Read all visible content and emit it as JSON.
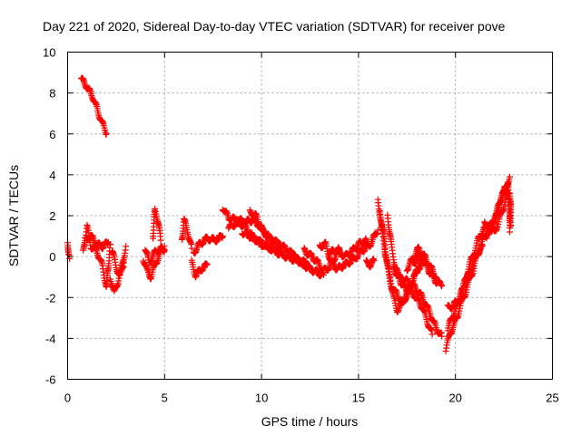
{
  "chart_data": {
    "type": "scatter",
    "title": "Day 221 of 2020, Sidereal Day-to-day VTEC variation (SDTVAR) for receiver pove",
    "xlabel": "GPS time / hours",
    "ylabel": "SDTVAR / TECUs",
    "xlim": [
      0,
      25
    ],
    "ylim": [
      -6,
      10
    ],
    "xticks": [
      "0",
      "5",
      "10",
      "15",
      "20",
      "25"
    ],
    "yticks": [
      "-6",
      "-4",
      "-2",
      "0",
      "2",
      "4",
      "6",
      "8",
      "10"
    ],
    "grid": true,
    "marker": "+",
    "series_color": "#ff0000",
    "segments": [
      {
        "name": "early-high",
        "points": [
          [
            0.7,
            8.7
          ],
          [
            1.0,
            8.3
          ],
          [
            1.3,
            7.8
          ],
          [
            1.6,
            7.0
          ],
          [
            2.0,
            6.0
          ]
        ]
      },
      {
        "name": "start",
        "points": [
          [
            0.0,
            0.8
          ],
          [
            0.05,
            0.0
          ],
          [
            0.1,
            -0.1
          ]
        ]
      },
      {
        "name": "hour1-2a",
        "points": [
          [
            0.8,
            0.2
          ],
          [
            1.0,
            1.5
          ],
          [
            1.2,
            0.5
          ],
          [
            1.5,
            0.3
          ],
          [
            1.8,
            -0.5
          ],
          [
            2.0,
            -1.5
          ],
          [
            2.2,
            0.6
          ]
        ]
      },
      {
        "name": "hour1-2b",
        "points": [
          [
            0.9,
            0.8
          ],
          [
            1.2,
            1.0
          ],
          [
            1.5,
            0.6
          ],
          [
            1.8,
            0.5
          ],
          [
            2.1,
            0.7
          ]
        ]
      },
      {
        "name": "hour2-3",
        "points": [
          [
            2.2,
            -1.0
          ],
          [
            2.4,
            -1.8
          ],
          [
            2.6,
            -1.2
          ],
          [
            2.8,
            -0.5
          ],
          [
            3.0,
            0.5
          ]
        ]
      },
      {
        "name": "hour2-3b",
        "points": [
          [
            2.3,
            0.3
          ],
          [
            2.5,
            -0.5
          ],
          [
            2.7,
            -1.0
          ],
          [
            2.9,
            -0.3
          ]
        ]
      },
      {
        "name": "hour4-5",
        "points": [
          [
            3.9,
            -0.1
          ],
          [
            4.1,
            -0.7
          ],
          [
            4.3,
            -1.0
          ],
          [
            4.5,
            -0.4
          ],
          [
            4.8,
            0.2
          ],
          [
            5.0,
            0.5
          ]
        ]
      },
      {
        "name": "hour4-5b",
        "points": [
          [
            4.0,
            0.4
          ],
          [
            4.2,
            -0.3
          ],
          [
            4.5,
            0.2
          ],
          [
            4.8,
            0.4
          ],
          [
            5.0,
            0.3
          ]
        ]
      },
      {
        "name": "hour4-spike",
        "points": [
          [
            4.4,
            1.0
          ],
          [
            4.5,
            2.3
          ],
          [
            4.6,
            2.0
          ],
          [
            4.7,
            1.5
          ],
          [
            4.8,
            0.8
          ]
        ]
      },
      {
        "name": "hour6",
        "points": [
          [
            5.9,
            0.8
          ],
          [
            6.0,
            1.8
          ],
          [
            6.2,
            1.2
          ],
          [
            6.4,
            0.4
          ]
        ]
      },
      {
        "name": "hour6-7",
        "points": [
          [
            6.4,
            -0.3
          ],
          [
            6.6,
            -0.9
          ],
          [
            6.9,
            -0.6
          ],
          [
            7.2,
            -0.4
          ]
        ]
      },
      {
        "name": "hour6-7b",
        "points": [
          [
            6.5,
            0.2
          ],
          [
            6.8,
            0.6
          ],
          [
            7.2,
            0.9
          ],
          [
            7.6,
            0.8
          ],
          [
            8.0,
            1.0
          ]
        ]
      },
      {
        "name": "hour8-10a",
        "points": [
          [
            8.0,
            2.4
          ],
          [
            8.3,
            1.9
          ],
          [
            8.7,
            1.8
          ],
          [
            9.2,
            1.7
          ],
          [
            9.6,
            1.8
          ],
          [
            10.0,
            1.4
          ],
          [
            10.5,
            0.8
          ],
          [
            11.0,
            0.6
          ]
        ]
      },
      {
        "name": "hour8-10b",
        "points": [
          [
            8.3,
            1.4
          ],
          [
            8.8,
            1.7
          ],
          [
            9.2,
            1.4
          ],
          [
            9.6,
            0.9
          ],
          [
            10.0,
            0.6
          ],
          [
            10.5,
            0.4
          ],
          [
            11.0,
            0.3
          ]
        ]
      },
      {
        "name": "hour9-11",
        "points": [
          [
            9.4,
            2.2
          ],
          [
            9.7,
            2.0
          ],
          [
            10.0,
            1.3
          ],
          [
            10.4,
            0.9
          ],
          [
            10.9,
            0.6
          ],
          [
            11.4,
            0.3
          ],
          [
            11.9,
            -0.2
          ],
          [
            12.4,
            -0.4
          ]
        ]
      },
      {
        "name": "hour9-11b",
        "points": [
          [
            9.0,
            1.2
          ],
          [
            9.4,
            1.0
          ],
          [
            9.8,
            0.8
          ],
          [
            10.3,
            0.5
          ],
          [
            10.8,
            0.2
          ],
          [
            11.3,
            0.0
          ],
          [
            11.8,
            -0.2
          ],
          [
            12.3,
            -0.3
          ]
        ]
      },
      {
        "name": "hour11-13",
        "points": [
          [
            11.5,
            0.2
          ],
          [
            12.0,
            -0.3
          ],
          [
            12.5,
            -0.6
          ],
          [
            12.9,
            -0.8
          ],
          [
            13.2,
            -0.9
          ]
        ]
      },
      {
        "name": "hour12-14",
        "points": [
          [
            12.2,
            0.3
          ],
          [
            12.6,
            0.0
          ],
          [
            12.9,
            -0.3
          ],
          [
            13.2,
            -0.7
          ],
          [
            13.5,
            -0.5
          ],
          [
            13.8,
            0.0
          ],
          [
            14.0,
            0.4
          ]
        ]
      },
      {
        "name": "hour13-15",
        "points": [
          [
            13.0,
            0.5
          ],
          [
            13.3,
            0.6
          ],
          [
            13.6,
            -0.3
          ],
          [
            13.9,
            -0.6
          ],
          [
            14.3,
            -0.4
          ],
          [
            14.8,
            -0.1
          ],
          [
            15.2,
            0.3
          ],
          [
            15.6,
            0.6
          ],
          [
            16.0,
            1.3
          ]
        ]
      },
      {
        "name": "hour13-15b",
        "points": [
          [
            13.5,
            0.2
          ],
          [
            13.9,
            0.3
          ],
          [
            14.3,
            0.0
          ],
          [
            14.7,
            0.3
          ],
          [
            15.0,
            0.6
          ],
          [
            15.4,
            0.8
          ]
        ]
      },
      {
        "name": "hour15-16",
        "points": [
          [
            15.4,
            -0.3
          ],
          [
            15.6,
            -0.4
          ],
          [
            15.8,
            -0.2
          ]
        ]
      },
      {
        "name": "hour16-18a",
        "points": [
          [
            16.0,
            2.7
          ],
          [
            16.2,
            1.5
          ],
          [
            16.4,
            0.0
          ],
          [
            16.6,
            -1.0
          ],
          [
            16.8,
            -2.0
          ],
          [
            17.0,
            -2.6
          ],
          [
            17.2,
            -2.4
          ],
          [
            17.5,
            -1.8
          ],
          [
            17.8,
            -1.2
          ],
          [
            18.1,
            -0.5
          ],
          [
            18.3,
            0.0
          ]
        ]
      },
      {
        "name": "hour16-18b",
        "points": [
          [
            16.1,
            2.2
          ],
          [
            16.3,
            1.0
          ],
          [
            16.5,
            -0.4
          ],
          [
            16.7,
            -1.4
          ],
          [
            17.0,
            -1.9
          ],
          [
            17.3,
            -2.3
          ],
          [
            17.6,
            -1.6
          ],
          [
            17.9,
            -0.9
          ],
          [
            18.2,
            -0.4
          ],
          [
            18.4,
            -0.2
          ]
        ]
      },
      {
        "name": "hour16-19c",
        "points": [
          [
            16.5,
            2.0
          ],
          [
            16.7,
            0.5
          ],
          [
            16.9,
            -0.5
          ],
          [
            17.2,
            -1.3
          ],
          [
            17.5,
            -1.6
          ],
          [
            17.9,
            -1.9
          ],
          [
            18.3,
            -2.5
          ],
          [
            18.6,
            -3.3
          ],
          [
            18.8,
            -3.8
          ]
        ]
      },
      {
        "name": "hour17-19d",
        "points": [
          [
            16.8,
            -0.6
          ],
          [
            17.1,
            -1.0
          ],
          [
            17.5,
            -1.2
          ],
          [
            17.9,
            -1.5
          ],
          [
            18.3,
            -2.0
          ],
          [
            18.7,
            -2.8
          ],
          [
            19.0,
            -3.5
          ],
          [
            19.3,
            -3.9
          ]
        ]
      },
      {
        "name": "hour18-19e",
        "points": [
          [
            17.8,
            -0.4
          ],
          [
            18.1,
            0.0
          ],
          [
            18.4,
            -0.3
          ],
          [
            18.7,
            -0.8
          ],
          [
            19.0,
            -1.2
          ],
          [
            19.3,
            -1.4
          ]
        ]
      },
      {
        "name": "hour17-19f",
        "points": [
          [
            17.5,
            -0.6
          ],
          [
            17.8,
            -0.1
          ],
          [
            18.1,
            0.4
          ],
          [
            18.4,
            0.0
          ],
          [
            18.7,
            -0.5
          ],
          [
            19.0,
            -1.0
          ]
        ]
      },
      {
        "name": "hour19-21a",
        "points": [
          [
            19.5,
            -4.6
          ],
          [
            19.7,
            -3.8
          ],
          [
            19.9,
            -3.4
          ],
          [
            20.1,
            -2.9
          ],
          [
            20.3,
            -2.3
          ],
          [
            20.5,
            -1.8
          ],
          [
            20.7,
            -1.2
          ],
          [
            20.9,
            -0.7
          ],
          [
            21.1,
            0.0
          ],
          [
            21.4,
            0.8
          ],
          [
            21.7,
            1.3
          ],
          [
            22.0,
            1.6
          ]
        ]
      },
      {
        "name": "hour19-21b",
        "points": [
          [
            19.6,
            -3.6
          ],
          [
            19.8,
            -3.0
          ],
          [
            20.0,
            -2.6
          ],
          [
            20.2,
            -2.2
          ],
          [
            20.4,
            -1.5
          ],
          [
            20.6,
            -0.8
          ],
          [
            20.8,
            -0.2
          ],
          [
            21.0,
            0.3
          ],
          [
            21.2,
            0.9
          ],
          [
            21.5,
            1.4
          ]
        ]
      },
      {
        "name": "hour19-21c",
        "points": [
          [
            19.6,
            -2.5
          ],
          [
            19.9,
            -2.4
          ],
          [
            20.2,
            -2.0
          ],
          [
            20.5,
            -1.3
          ],
          [
            20.8,
            -0.6
          ],
          [
            21.1,
            0.1
          ],
          [
            21.4,
            0.5
          ]
        ]
      },
      {
        "name": "hour21-23a",
        "points": [
          [
            21.5,
            1.6
          ],
          [
            21.8,
            1.5
          ],
          [
            22.0,
            1.8
          ],
          [
            22.2,
            2.4
          ],
          [
            22.4,
            3.0
          ],
          [
            22.6,
            3.4
          ],
          [
            22.8,
            3.9
          ]
        ]
      },
      {
        "name": "hour21-23b",
        "points": [
          [
            21.6,
            0.9
          ],
          [
            21.9,
            1.4
          ],
          [
            22.1,
            2.0
          ],
          [
            22.3,
            2.7
          ],
          [
            22.5,
            3.2
          ],
          [
            22.7,
            3.6
          ],
          [
            22.8,
            2.0
          ],
          [
            22.8,
            1.2
          ]
        ]
      },
      {
        "name": "hour22-23c",
        "points": [
          [
            22.0,
            1.2
          ],
          [
            22.2,
            1.6
          ],
          [
            22.4,
            2.2
          ],
          [
            22.6,
            2.8
          ],
          [
            22.8,
            3.2
          ],
          [
            22.85,
            2.5
          ],
          [
            22.85,
            1.5
          ]
        ]
      }
    ]
  }
}
